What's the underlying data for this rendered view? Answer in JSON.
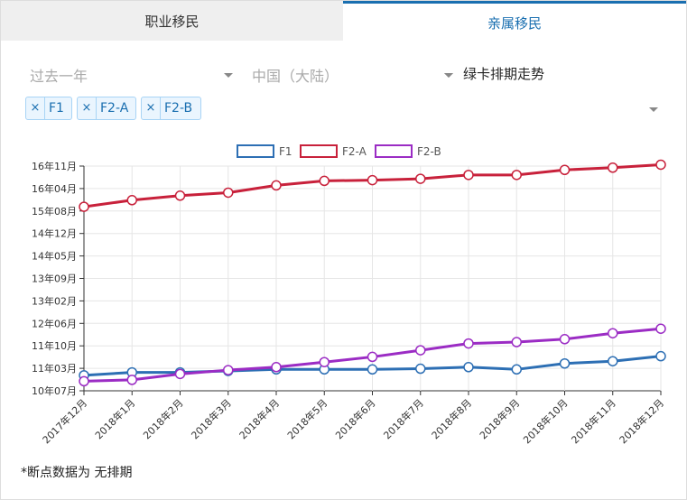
{
  "tabs": [
    {
      "label": "职业移民",
      "active": false
    },
    {
      "label": "亲属移民",
      "active": true
    }
  ],
  "filters": {
    "period": "过去一年",
    "country": "中国（大陆）",
    "chart_type": "绿卡排期走势"
  },
  "tags": [
    "F1",
    "F2-A",
    "F2-B"
  ],
  "tag_remove_symbol": "×",
  "note": "*断点数据为 无排期",
  "colors": {
    "accent": "#1a6fb0",
    "F1": "#2d6fb4",
    "F2-A": "#c8213b",
    "F2-B": "#9b2cc4"
  },
  "chart_data": {
    "type": "line",
    "x": [
      "2017年12月",
      "2018年1月",
      "2018年2月",
      "2018年3月",
      "2018年4月",
      "2018年5月",
      "2018年6月",
      "2018年7月",
      "2018年8月",
      "2018年9月",
      "2018年10月",
      "2018年11月",
      "2018年12月"
    ],
    "yticks": [
      "10年07月",
      "11年03月",
      "11年10月",
      "12年06月",
      "13年02月",
      "13年09月",
      "14年05月",
      "14年12月",
      "15年08月",
      "16年04月",
      "16年11月"
    ],
    "ylim": [
      "2010-07",
      "2016-11"
    ],
    "ylim_months": [
      24126,
      24202
    ],
    "grid": true,
    "legend": "top",
    "series": [
      {
        "name": "F1",
        "values": [
          "2010-12-08",
          "2011-01-08",
          "2011-01-08",
          "2011-01-22",
          "2011-02-08",
          "2011-02-08",
          "2011-02-08",
          "2011-02-15",
          "2011-03-01",
          "2011-02-08",
          "2011-04-08",
          "2011-05-01",
          "2011-06-22"
        ]
      },
      {
        "name": "F2-A",
        "values": [
          "2015-09-08",
          "2015-11-15",
          "2016-01-01",
          "2016-02-01",
          "2016-04-15",
          "2016-06-01",
          "2016-06-08",
          "2016-06-22",
          "2016-08-01",
          "2016-08-01",
          "2016-09-22",
          "2016-10-15",
          "2016-11-15"
        ]
      },
      {
        "name": "F2-B",
        "values": [
          "2010-10-08",
          "2010-10-22",
          "2010-12-22",
          "2011-02-01",
          "2011-03-01",
          "2011-04-22",
          "2011-06-15",
          "2011-08-22",
          "2011-11-01",
          "2011-11-15",
          "2011-12-15",
          "2012-02-15",
          "2012-04-01"
        ]
      }
    ]
  }
}
